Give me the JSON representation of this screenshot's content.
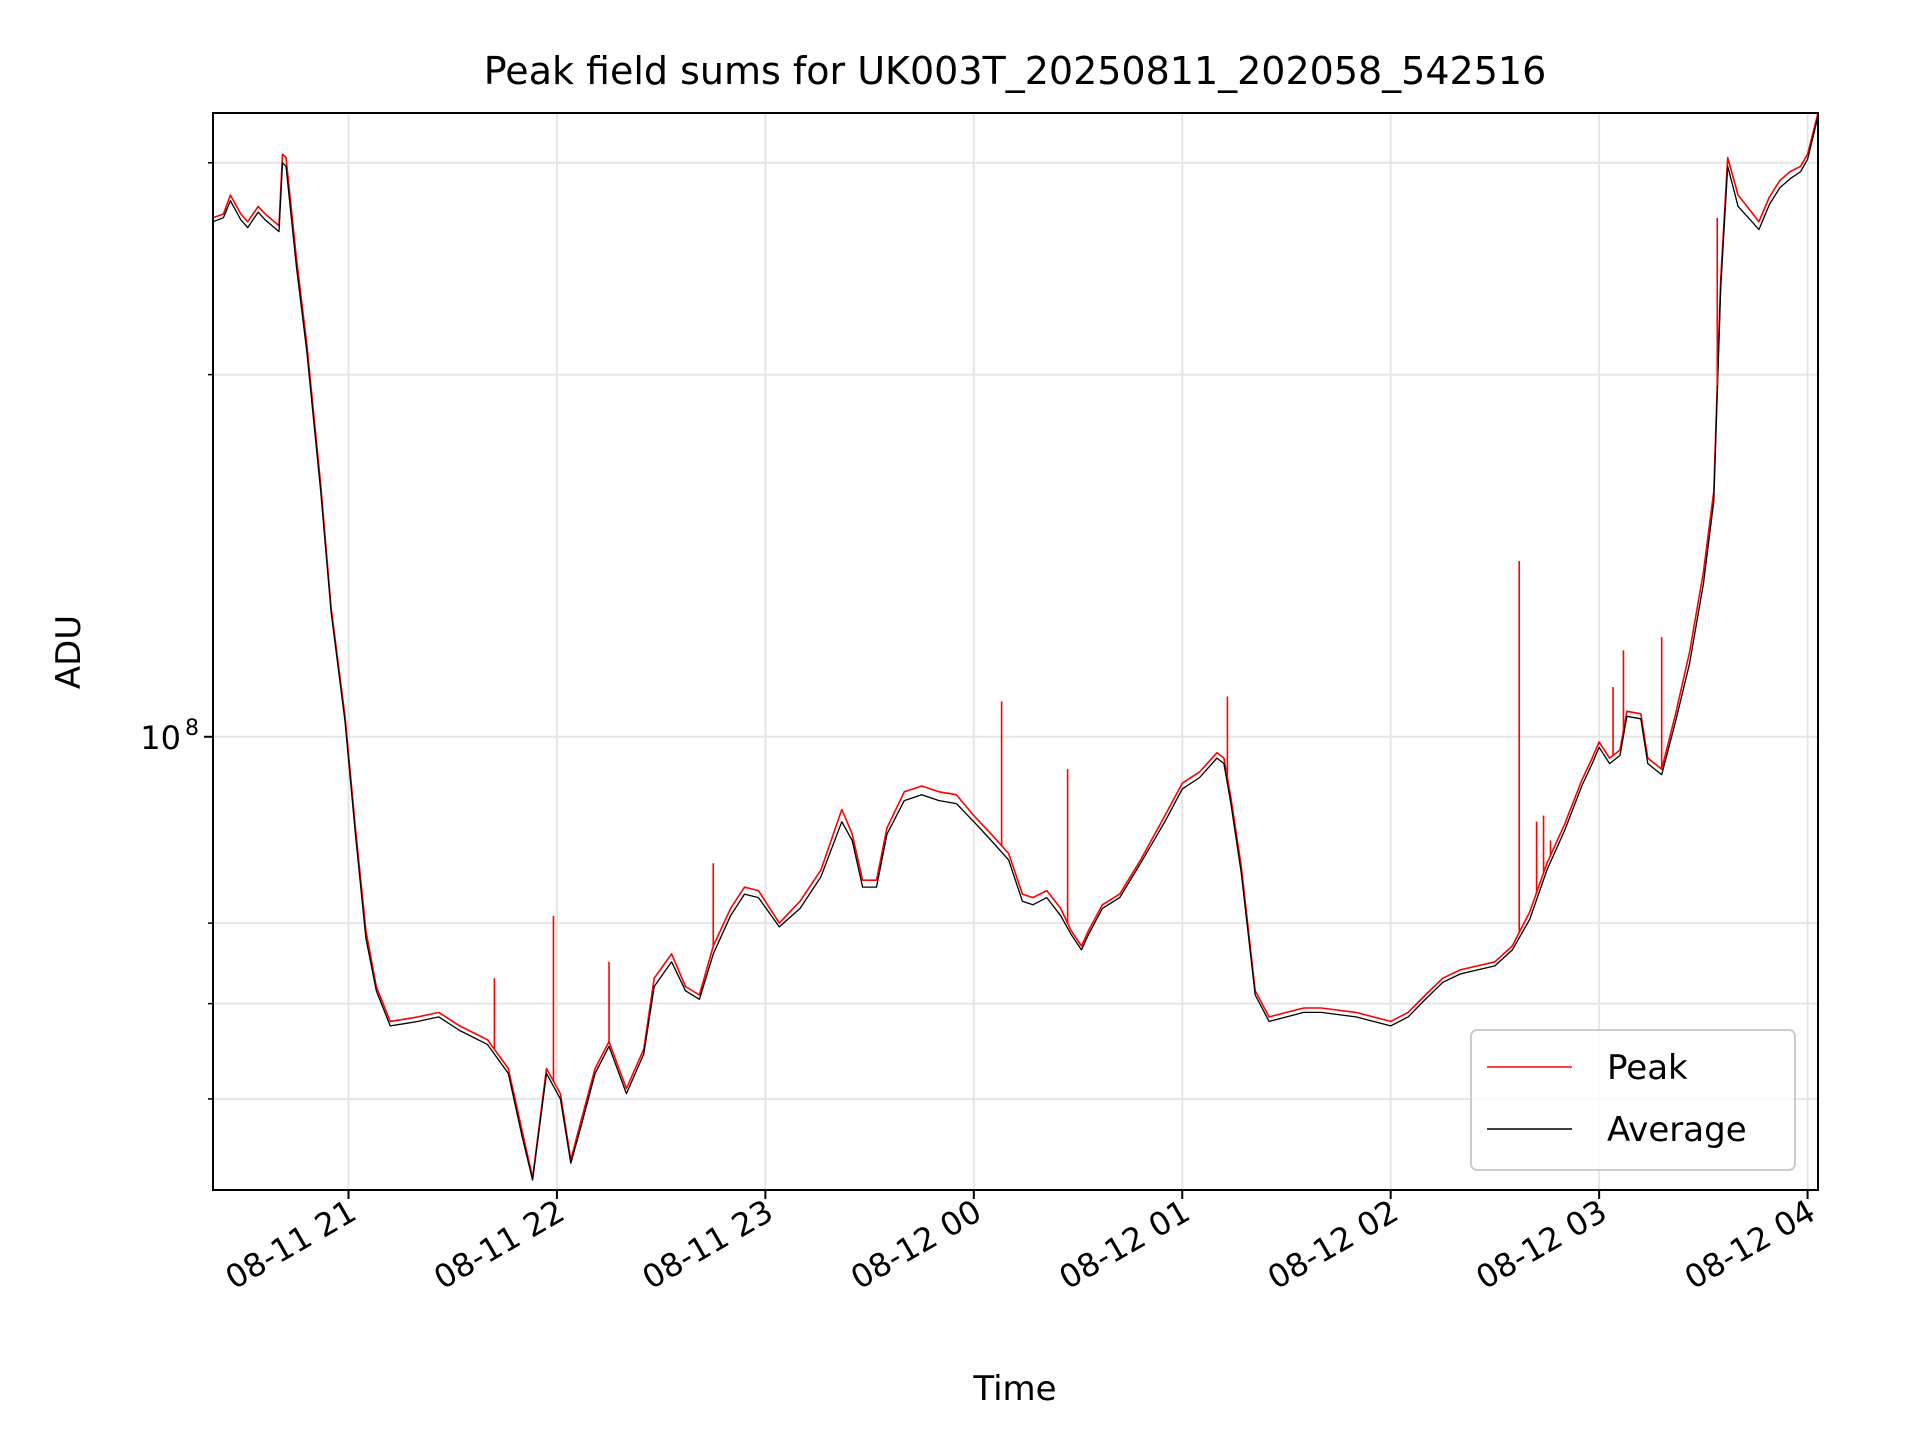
{
  "chart_data": {
    "type": "line",
    "title": "Peak field sums for UK003T_20250811_202058_542516",
    "xlabel": "Time",
    "ylabel": "ADU",
    "x_ticks": [
      "08-11 21",
      "08-11 22",
      "08-11 23",
      "08-12 00",
      "08-12 01",
      "08-12 02",
      "08-12 03",
      "08-12 04"
    ],
    "y_tick_major": {
      "base": "10",
      "exponent": "8"
    },
    "y_scale": "log",
    "ylim": [
      42000000,
      330000000
    ],
    "xlim": [
      "08-11 20:21",
      "08-12 04:03"
    ],
    "grid": true,
    "legend_position": "lower right",
    "colors": {
      "peak": "#ff0000",
      "average": "#000000",
      "grid": "#e6e6e6"
    },
    "series": [
      {
        "name": "Peak",
        "x": [
          "08-11 20:21",
          "08-11 20:24",
          "08-11 20:26",
          "08-11 20:29",
          "08-11 20:31",
          "08-11 20:34",
          "08-11 20:36",
          "08-11 20:40",
          "08-11 20:41",
          "08-11 20:42",
          "08-11 20:45",
          "08-11 20:48",
          "08-11 20:52",
          "08-11 20:55",
          "08-11 20:59",
          "08-11 21:02",
          "08-11 21:05",
          "08-11 21:08",
          "08-11 21:12",
          "08-11 21:17",
          "08-11 21:20",
          "08-11 21:26",
          "08-11 21:32",
          "08-11 21:40",
          "08-11 21:46",
          "08-11 21:50",
          "08-11 21:53",
          "08-11 21:57",
          "08-11 22:01",
          "08-11 22:04",
          "08-11 22:07",
          "08-11 22:11",
          "08-11 22:15",
          "08-11 22:20",
          "08-11 22:25",
          "08-11 22:28",
          "08-11 22:33",
          "08-11 22:37",
          "08-11 22:41",
          "08-11 22:45",
          "08-11 22:50",
          "08-11 22:54",
          "08-11 22:58",
          "08-11 23:04",
          "08-11 23:10",
          "08-11 23:16",
          "08-11 23:22",
          "08-11 23:25",
          "08-11 23:28",
          "08-11 23:32",
          "08-11 23:35",
          "08-11 23:40",
          "08-11 23:45",
          "08-11 23:50",
          "08-11 23:55",
          "08-12 00:00",
          "08-12 00:05",
          "08-12 00:10",
          "08-12 00:14",
          "08-12 00:17",
          "08-12 00:21",
          "08-12 00:25",
          "08-12 00:28",
          "08-12 00:31",
          "08-12 00:33",
          "08-12 00:37",
          "08-12 00:42",
          "08-12 00:48",
          "08-12 00:55",
          "08-12 01:00",
          "08-12 01:05",
          "08-12 01:10",
          "08-12 01:12",
          "08-12 01:14",
          "08-12 01:17",
          "08-12 01:21",
          "08-12 01:25",
          "08-12 01:30",
          "08-12 01:35",
          "08-12 01:40",
          "08-12 01:50",
          "08-12 02:00",
          "08-12 02:05",
          "08-12 02:10",
          "08-12 02:15",
          "08-12 02:20",
          "08-12 02:25",
          "08-12 02:30",
          "08-12 02:35",
          "08-12 02:40",
          "08-12 02:45",
          "08-12 02:50",
          "08-12 02:55",
          "08-12 02:58",
          "08-12 03:00",
          "08-12 03:03",
          "08-12 03:06",
          "08-12 03:08",
          "08-12 03:12",
          "08-12 03:14",
          "08-12 03:18",
          "08-12 03:22",
          "08-12 03:26",
          "08-12 03:30",
          "08-12 03:33",
          "08-12 03:35",
          "08-12 03:37",
          "08-12 03:40",
          "08-12 03:43",
          "08-12 03:46",
          "08-12 03:49",
          "08-12 03:52",
          "08-12 03:55",
          "08-12 03:58",
          "08-12 04:00",
          "08-12 04:03"
        ],
        "y": [
          270000000,
          272000000,
          282000000,
          272000000,
          268000000,
          276000000,
          272000000,
          266000000,
          305000000,
          303000000,
          250000000,
          212000000,
          162000000,
          128000000,
          104000000,
          84000000,
          69000000,
          62000000,
          58000000,
          58300000,
          58500000,
          59000000,
          57500000,
          56000000,
          53000000,
          47000000,
          43000000,
          53000000,
          50500000,
          44500000,
          48000000,
          53000000,
          55800000,
          51000000,
          55000000,
          63000000,
          66000000,
          62000000,
          61000000,
          67000000,
          72000000,
          75000000,
          74500000,
          70000000,
          73000000,
          77500000,
          87000000,
          83000000,
          76000000,
          76000000,
          84000000,
          90000000,
          91000000,
          90000000,
          89500000,
          86000000,
          83000000,
          80000000,
          74000000,
          73500000,
          74500000,
          72000000,
          69000000,
          67000000,
          69000000,
          72500000,
          74000000,
          79000000,
          86000000,
          91500000,
          93500000,
          97000000,
          96000000,
          89000000,
          78000000,
          61500000,
          58500000,
          59000000,
          59500000,
          59500000,
          59000000,
          58000000,
          59000000,
          61000000,
          63000000,
          64000000,
          64500000,
          65000000,
          67000000,
          71500000,
          78500000,
          84500000,
          92000000,
          96000000,
          99000000,
          96000000,
          97500000,
          105000000,
          104500000,
          96000000,
          94000000,
          104500000,
          117500000,
          137000000,
          160000000,
          240000000,
          303000000,
          282000000,
          275000000,
          268000000,
          281000000,
          290000000,
          295000000,
          298000000,
          305000000,
          330000000
        ]
      },
      {
        "name": "Average",
        "x": [
          "08-11 20:21",
          "08-11 20:24",
          "08-11 20:26",
          "08-11 20:29",
          "08-11 20:31",
          "08-11 20:34",
          "08-11 20:36",
          "08-11 20:40",
          "08-11 20:41",
          "08-11 20:42",
          "08-11 20:45",
          "08-11 20:48",
          "08-11 20:52",
          "08-11 20:55",
          "08-11 20:59",
          "08-11 21:02",
          "08-11 21:05",
          "08-11 21:08",
          "08-11 21:12",
          "08-11 21:17",
          "08-11 21:20",
          "08-11 21:26",
          "08-11 21:32",
          "08-11 21:40",
          "08-11 21:46",
          "08-11 21:50",
          "08-11 21:53",
          "08-11 21:57",
          "08-11 22:01",
          "08-11 22:04",
          "08-11 22:07",
          "08-11 22:11",
          "08-11 22:15",
          "08-11 22:20",
          "08-11 22:25",
          "08-11 22:28",
          "08-11 22:33",
          "08-11 22:37",
          "08-11 22:41",
          "08-11 22:45",
          "08-11 22:50",
          "08-11 22:54",
          "08-11 22:58",
          "08-11 23:04",
          "08-11 23:10",
          "08-11 23:16",
          "08-11 23:22",
          "08-11 23:25",
          "08-11 23:28",
          "08-11 23:32",
          "08-11 23:35",
          "08-11 23:40",
          "08-11 23:45",
          "08-11 23:50",
          "08-11 23:55",
          "08-12 00:00",
          "08-12 00:05",
          "08-12 00:10",
          "08-12 00:14",
          "08-12 00:17",
          "08-12 00:21",
          "08-12 00:25",
          "08-12 00:28",
          "08-12 00:31",
          "08-12 00:33",
          "08-12 00:37",
          "08-12 00:42",
          "08-12 00:48",
          "08-12 00:55",
          "08-12 01:00",
          "08-12 01:05",
          "08-12 01:10",
          "08-12 01:12",
          "08-12 01:14",
          "08-12 01:17",
          "08-12 01:21",
          "08-12 01:25",
          "08-12 01:30",
          "08-12 01:35",
          "08-12 01:40",
          "08-12 01:50",
          "08-12 02:00",
          "08-12 02:05",
          "08-12 02:10",
          "08-12 02:15",
          "08-12 02:20",
          "08-12 02:25",
          "08-12 02:30",
          "08-12 02:35",
          "08-12 02:40",
          "08-12 02:45",
          "08-12 02:50",
          "08-12 02:55",
          "08-12 02:58",
          "08-12 03:00",
          "08-12 03:03",
          "08-12 03:06",
          "08-12 03:08",
          "08-12 03:12",
          "08-12 03:14",
          "08-12 03:18",
          "08-12 03:22",
          "08-12 03:26",
          "08-12 03:30",
          "08-12 03:33",
          "08-12 03:35",
          "08-12 03:37",
          "08-12 03:40",
          "08-12 03:43",
          "08-12 03:46",
          "08-12 03:49",
          "08-12 03:52",
          "08-12 03:55",
          "08-12 03:58",
          "08-12 04:00",
          "08-12 04:03"
        ],
        "y": [
          268000000,
          270000000,
          279000000,
          269000000,
          265000000,
          273000000,
          269000000,
          263000000,
          300000000,
          298000000,
          246000000,
          209000000,
          160000000,
          127000000,
          103000000,
          83000000,
          68000000,
          61500000,
          57500000,
          57800000,
          58000000,
          58500000,
          57000000,
          55500000,
          52500000,
          46500000,
          42800000,
          52500000,
          50000000,
          44200000,
          47500000,
          52500000,
          55300000,
          50500000,
          54500000,
          62000000,
          65000000,
          61500000,
          60500000,
          66000000,
          71000000,
          74000000,
          73500000,
          69500000,
          72000000,
          76500000,
          85000000,
          82000000,
          75000000,
          75000000,
          83000000,
          88500000,
          89500000,
          88500000,
          88000000,
          85000000,
          82000000,
          79000000,
          73000000,
          72500000,
          73500000,
          71000000,
          68500000,
          66500000,
          68500000,
          72000000,
          73500000,
          78500000,
          85000000,
          90500000,
          92500000,
          96000000,
          95000000,
          88000000,
          77000000,
          61000000,
          58000000,
          58500000,
          59000000,
          59000000,
          58500000,
          57500000,
          58500000,
          60500000,
          62500000,
          63500000,
          64000000,
          64500000,
          66500000,
          70500000,
          77500000,
          83500000,
          91000000,
          95000000,
          98000000,
          95000000,
          96500000,
          104000000,
          103500000,
          95000000,
          93000000,
          103000000,
          115000000,
          134000000,
          157000000,
          236000000,
          298000000,
          276000000,
          270000000,
          264000000,
          277000000,
          286000000,
          291000000,
          295000000,
          302000000,
          328000000
        ]
      }
    ],
    "spikes": [
      {
        "series": "Peak",
        "x": "08-11 21:42",
        "y": 63000000
      },
      {
        "series": "Peak",
        "x": "08-11 21:59",
        "y": 71000000
      },
      {
        "series": "Peak",
        "x": "08-11 22:15",
        "y": 65000000
      },
      {
        "series": "Peak",
        "x": "08-11 22:45",
        "y": 78500000
      },
      {
        "series": "Peak",
        "x": "08-12 00:08",
        "y": 107000000
      },
      {
        "series": "Peak",
        "x": "08-12 00:27",
        "y": 94000000
      },
      {
        "series": "Peak",
        "x": "08-12 01:13",
        "y": 108000000
      },
      {
        "series": "Peak",
        "x": "08-12 02:37",
        "y": 140000000
      },
      {
        "series": "Peak",
        "x": "08-12 02:42",
        "y": 85000000
      },
      {
        "series": "Peak",
        "x": "08-12 02:44",
        "y": 86000000
      },
      {
        "series": "Peak",
        "x": "08-12 02:46",
        "y": 82000000
      },
      {
        "series": "Peak",
        "x": "08-12 03:04",
        "y": 110000000
      },
      {
        "series": "Peak",
        "x": "08-12 03:07",
        "y": 118000000
      },
      {
        "series": "Peak",
        "x": "08-12 03:18",
        "y": 121000000
      },
      {
        "series": "Peak",
        "x": "08-12 03:34",
        "y": 270000000
      }
    ]
  }
}
